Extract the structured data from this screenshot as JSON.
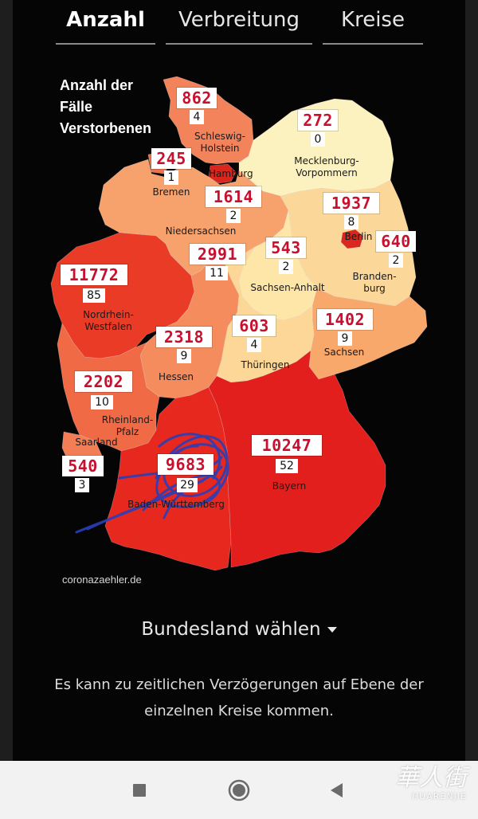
{
  "tabs": [
    {
      "label": "Anzahl",
      "active": true
    },
    {
      "label": "Verbreitung",
      "active": false
    },
    {
      "label": "Kreise",
      "active": false
    }
  ],
  "legend": {
    "line1": "Anzahl der",
    "line2": "Fälle",
    "line3": "Verstorbenen"
  },
  "states": [
    {
      "key": "schleswig_holstein",
      "name_lines": [
        "Schleswig-",
        "Holstein"
      ],
      "cases": "862",
      "deaths": "4",
      "color": "#f3835a"
    },
    {
      "key": "hamburg",
      "name_lines": [
        "Hamburg"
      ],
      "cases": "",
      "deaths": "",
      "color": "#d9261f"
    },
    {
      "key": "mecklenburg_vorpommern",
      "name_lines": [
        "Mecklenburg-",
        "Vorpommern"
      ],
      "cases": "272",
      "deaths": "0",
      "color": "#fcf2bf"
    },
    {
      "key": "bremen",
      "name_lines": [
        "Bremen"
      ],
      "cases": "245",
      "deaths": "1",
      "color": "#f0714a"
    },
    {
      "key": "niedersachsen",
      "name_lines": [
        "Niedersachsen"
      ],
      "cases": "1614",
      "deaths": "2",
      "color": "#f7a26d"
    },
    {
      "key": "berlin",
      "name_lines": [
        "Berlin"
      ],
      "cases": "1937",
      "deaths": "8",
      "color": "#d9261f"
    },
    {
      "key": "brandenburg",
      "name_lines": [
        "Branden-",
        "burg"
      ],
      "cases": "640",
      "deaths": "2",
      "color": "#fbd79a"
    },
    {
      "key": "sachsen_anhalt",
      "name_lines": [
        "Sachsen-Anhalt"
      ],
      "cases": "543",
      "deaths": "2",
      "color": "#fde6a8"
    },
    {
      "key": "nordrhein_westfalen",
      "name_lines": [
        "Nordrhein-",
        "Westfalen"
      ],
      "cases": "11772",
      "deaths": "85",
      "color": "#ea3b26"
    },
    {
      "key": "hessen",
      "name_lines": [
        "Hessen"
      ],
      "cases": "2318",
      "deaths": "9",
      "color": "#f58c5e"
    },
    {
      "key": "thueringen",
      "name_lines": [
        "Thüringen"
      ],
      "cases": "603",
      "deaths": "4",
      "color": "#fcd797"
    },
    {
      "key": "sachsen",
      "name_lines": [
        "Sachsen"
      ],
      "cases": "1402",
      "deaths": "9",
      "color": "#f9a86c"
    },
    {
      "key": "rheinland_pfalz",
      "name_lines": [
        "Rheinland-",
        "Pfalz"
      ],
      "cases": "2202",
      "deaths": "10",
      "color": "#f06a45"
    },
    {
      "key": "saarland",
      "name_lines": [
        "Saarland"
      ],
      "cases": "540",
      "deaths": "3",
      "color": "#f37d55"
    },
    {
      "key": "baden_wuerttemberg",
      "name_lines": [
        "Baden-Württemberg"
      ],
      "cases": "9683",
      "deaths": "29",
      "color": "#e7281f"
    },
    {
      "key": "bayern",
      "name_lines": [
        "Bayern"
      ],
      "cases": "10247",
      "deaths": "52",
      "color": "#e21f1c"
    }
  ],
  "source": "coronazaehler.de",
  "select_state": {
    "label": "Bundesland wählen"
  },
  "note": "Es kann zu zeitlichen Verzögerungen auf Ebene der einzelnen Kreise kommen.",
  "navbar": {
    "recents_icon": "square-icon",
    "home_icon": "circle-icon",
    "back_icon": "triangle-left-icon"
  },
  "watermark": {
    "main": "華人街",
    "sub": "HUARENJIE"
  },
  "colors": {
    "background": "#050505",
    "case_text": "#c8102e",
    "scribble": "#2a3fb8"
  }
}
